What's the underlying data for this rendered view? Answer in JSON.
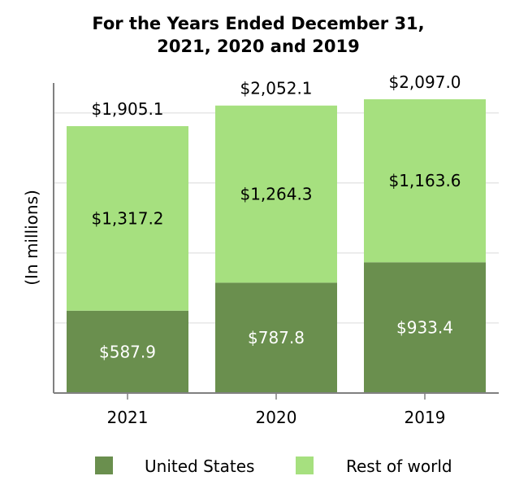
{
  "chart_data": {
    "type": "bar",
    "stacked": true,
    "title": [
      "For the Years Ended December 31,",
      "2021, 2020 and 2019"
    ],
    "ylabel": "(In millions)",
    "xlabel": "",
    "categories": [
      "2021",
      "2020",
      "2019"
    ],
    "series": [
      {
        "name": "United States",
        "values": [
          587.9,
          787.8,
          933.4
        ],
        "labels": [
          "$587.9",
          "$787.8",
          "$933.4"
        ],
        "color": "#6a8f4e",
        "label_color": "#ffffff"
      },
      {
        "name": "Rest of world",
        "values": [
          1317.2,
          1264.3,
          1163.6
        ],
        "labels": [
          "$1,317.2",
          "$1,264.3",
          "$1,163.6"
        ],
        "color": "#a6e07f",
        "label_color": "#000000"
      }
    ],
    "totals": [
      "$1,905.1",
      "$2,052.1",
      "$2,097.0"
    ],
    "ylim": [
      0,
      2200
    ],
    "grid": true,
    "legend": "bottom"
  }
}
